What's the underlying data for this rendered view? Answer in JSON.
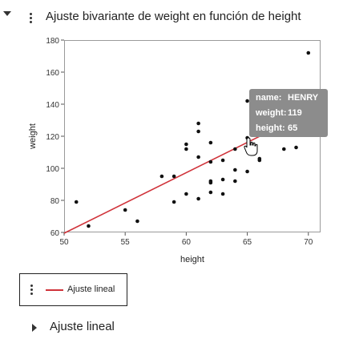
{
  "report": {
    "title": "Ajuste bivariante de weight en función de height",
    "section_label": "Ajuste lineal"
  },
  "legend": {
    "items": [
      {
        "label": "Ajuste lineal",
        "color": "#d0333a"
      }
    ]
  },
  "tooltip": {
    "rows": [
      {
        "key": "name:",
        "value": "HENRY"
      },
      {
        "key": "weight:",
        "value": "119"
      },
      {
        "key": "height:",
        "value": "65"
      }
    ]
  },
  "chart_data": {
    "type": "scatter",
    "xlabel": "height",
    "ylabel": "weight",
    "xlim": [
      50,
      71
    ],
    "ylim": [
      60,
      180
    ],
    "xticks": [
      50,
      55,
      60,
      65,
      70
    ],
    "yticks": [
      60,
      80,
      100,
      120,
      140,
      160,
      180
    ],
    "points": [
      {
        "x": 51,
        "y": 79
      },
      {
        "x": 52,
        "y": 64
      },
      {
        "x": 55,
        "y": 74
      },
      {
        "x": 56,
        "y": 67
      },
      {
        "x": 58,
        "y": 95
      },
      {
        "x": 59,
        "y": 95
      },
      {
        "x": 59,
        "y": 79
      },
      {
        "x": 60,
        "y": 84
      },
      {
        "x": 60,
        "y": 112
      },
      {
        "x": 60,
        "y": 115
      },
      {
        "x": 61,
        "y": 81
      },
      {
        "x": 61,
        "y": 107
      },
      {
        "x": 61,
        "y": 123
      },
      {
        "x": 61,
        "y": 128
      },
      {
        "x": 62,
        "y": 85
      },
      {
        "x": 62,
        "y": 91
      },
      {
        "x": 62,
        "y": 92
      },
      {
        "x": 62,
        "y": 104
      },
      {
        "x": 62,
        "y": 116
      },
      {
        "x": 63,
        "y": 84
      },
      {
        "x": 63,
        "y": 93
      },
      {
        "x": 63,
        "y": 105
      },
      {
        "x": 64,
        "y": 92
      },
      {
        "x": 64,
        "y": 99
      },
      {
        "x": 64,
        "y": 112
      },
      {
        "x": 65,
        "y": 98
      },
      {
        "x": 65,
        "y": 119
      },
      {
        "x": 65,
        "y": 142
      },
      {
        "x": 66,
        "y": 105
      },
      {
        "x": 66,
        "y": 106
      },
      {
        "x": 68,
        "y": 112
      },
      {
        "x": 69,
        "y": 113
      },
      {
        "x": 70,
        "y": 172
      }
    ],
    "fit_line": {
      "name": "Ajuste lineal",
      "color": "#d0333a",
      "x": [
        50,
        70
      ],
      "y": [
        59.5,
        135
      ]
    }
  }
}
